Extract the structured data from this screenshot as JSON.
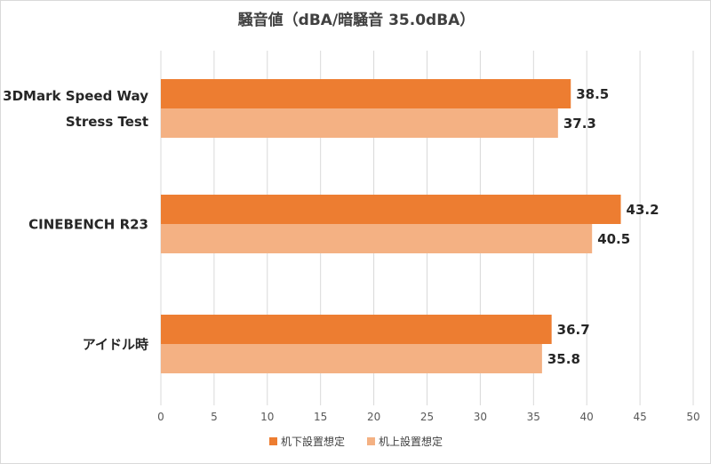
{
  "chart_data": {
    "type": "bar",
    "orientation": "horizontal",
    "title": "騒音値（dBA/暗騒音 35.0dBA）",
    "categories": [
      [
        "3DMark Speed Way",
        "Stress Test"
      ],
      [
        "CINEBENCH R23"
      ],
      [
        "アイドル時"
      ]
    ],
    "series": [
      {
        "name": "机下設置想定",
        "values": [
          38.5,
          43.2,
          36.7
        ],
        "color": "#ED7D31"
      },
      {
        "name": "机上設置想定",
        "values": [
          37.3,
          40.5,
          35.8
        ],
        "color": "#F4B183"
      }
    ],
    "xlim": [
      0,
      50
    ],
    "xticks": [
      "0",
      "5",
      "10",
      "15",
      "20",
      "25",
      "30",
      "35",
      "40",
      "45",
      "50"
    ],
    "grid": true,
    "gridColor": "#d9d9d9",
    "legend": "bottom-center",
    "data_labels": true
  }
}
